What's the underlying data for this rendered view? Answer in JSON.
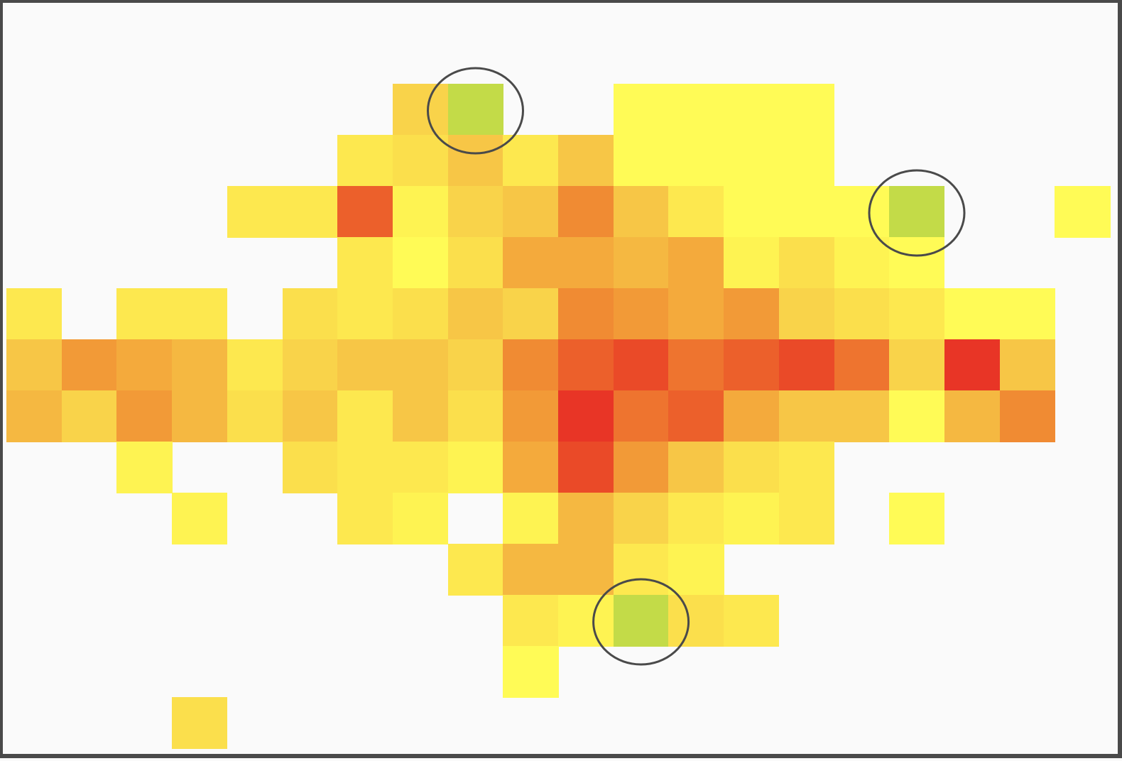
{
  "board": {
    "columns": 20,
    "palette": {
      "Y0": "#fffb56",
      "Y1": "#fef352",
      "Y2": "#fde84f",
      "Y3": "#fbdf4c",
      "Y4": "#f9d34a",
      "Y5": "#f7c646",
      "Y6": "#f5b841",
      "Y7": "#f4aa3c",
      "O1": "#f29a37",
      "O2": "#f08b33",
      "O3": "#ee742f",
      "O4": "#ec602b",
      "O5": "#ea4a28",
      "R1": "#e83526",
      "G": "#c3db48"
    },
    "rows": [
      [
        "",
        "",
        "",
        "",
        "",
        "",
        "",
        "",
        "",
        "",
        "",
        "",
        "",
        "",
        "",
        "",
        "",
        "",
        "",
        ""
      ],
      [
        "",
        "",
        "",
        "",
        "",
        "",
        "",
        "Y4",
        "G",
        "",
        "",
        "Y0",
        "Y0",
        "Y0",
        "Y0",
        "",
        "",
        "",
        "",
        ""
      ],
      [
        "",
        "",
        "",
        "",
        "",
        "",
        "Y2",
        "Y3",
        "Y5",
        "Y2",
        "Y5",
        "Y0",
        "Y0",
        "Y0",
        "Y0",
        "",
        "",
        "",
        "",
        ""
      ],
      [
        "",
        "",
        "",
        "",
        "Y2",
        "Y2",
        "O4",
        "Y1",
        "Y4",
        "Y5",
        "O2",
        "Y5",
        "Y2",
        "Y0",
        "Y0",
        "Y0",
        "G",
        "",
        "",
        "Y0"
      ],
      [
        "",
        "",
        "",
        "",
        "",
        "",
        "Y2",
        "Y0",
        "Y3",
        "Y7",
        "Y7",
        "Y6",
        "Y7",
        "Y1",
        "Y3",
        "Y1",
        "Y0",
        "",
        "",
        ""
      ],
      [
        "Y2",
        "",
        "Y2",
        "Y2",
        "",
        "Y3",
        "Y2",
        "Y3",
        "Y5",
        "Y4",
        "O2",
        "O1",
        "Y7",
        "O1",
        "Y4",
        "Y3",
        "Y2",
        "Y0",
        "Y0",
        ""
      ],
      [
        "Y5",
        "O1",
        "Y7",
        "Y6",
        "Y2",
        "Y4",
        "Y5",
        "Y5",
        "Y4",
        "O2",
        "O4",
        "O5",
        "O3",
        "O4",
        "O5",
        "O3",
        "Y4",
        "R1",
        "Y5",
        ""
      ],
      [
        "Y6",
        "Y4",
        "O1",
        "Y6",
        "Y3",
        "Y5",
        "Y2",
        "Y5",
        "Y3",
        "O1",
        "R1",
        "O3",
        "O4",
        "Y7",
        "Y5",
        "Y5",
        "Y0",
        "Y6",
        "O2",
        ""
      ],
      [
        "",
        "",
        "Y1",
        "",
        "",
        "Y3",
        "Y2",
        "Y2",
        "Y1",
        "Y7",
        "O5",
        "O1",
        "Y5",
        "Y3",
        "Y2",
        "",
        "",
        "",
        "",
        ""
      ],
      [
        "",
        "",
        "",
        "Y1",
        "",
        "",
        "Y2",
        "Y1",
        "",
        "Y1",
        "Y6",
        "Y4",
        "Y2",
        "Y1",
        "Y2",
        "",
        "Y0",
        "",
        "",
        ""
      ],
      [
        "",
        "",
        "",
        "",
        "",
        "",
        "",
        "",
        "Y2",
        "Y6",
        "Y6",
        "Y2",
        "Y1",
        "",
        "",
        "",
        "",
        "",
        "",
        ""
      ],
      [
        "",
        "",
        "",
        "",
        "",
        "",
        "",
        "",
        "",
        "Y2",
        "Y1",
        "G",
        "Y3",
        "Y2",
        "",
        "",
        "",
        "",
        "",
        ""
      ],
      [
        "",
        "",
        "",
        "",
        "",
        "",
        "",
        "",
        "",
        "Y0",
        "",
        "",
        "",
        "",
        "",
        "",
        "",
        "",
        "",
        ""
      ],
      [
        "",
        "",
        "",
        "Y3",
        "",
        "",
        "",
        "",
        "",
        "",
        "",
        "",
        "",
        "",
        "",
        "",
        "",
        "",
        "",
        ""
      ]
    ],
    "markers": [
      {
        "name": "highlight-ring-top",
        "row": 1,
        "col": 8
      },
      {
        "name": "highlight-ring-right",
        "row": 3,
        "col": 16
      },
      {
        "name": "highlight-ring-bottom",
        "row": 11,
        "col": 11
      }
    ],
    "border_color": "#4a4a4a",
    "background_color": "#fafafa",
    "ring_color": "#4a4a4a"
  }
}
